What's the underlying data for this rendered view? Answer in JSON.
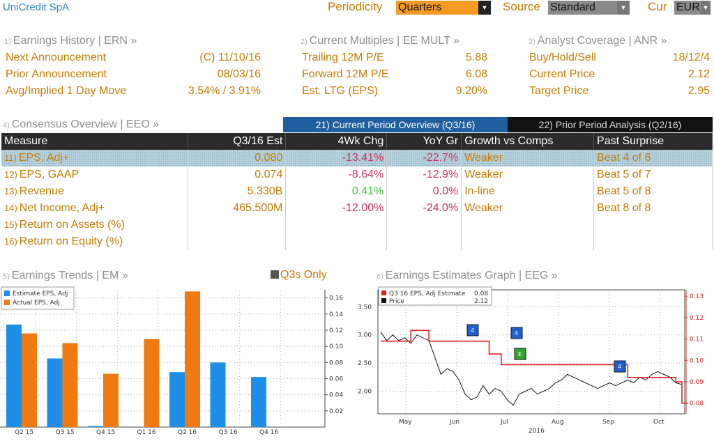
{
  "header": {
    "security": "UniCredit SpA",
    "periodicity_label": "Periodicity",
    "periodicity_value": "Quarters",
    "source_label": "Source",
    "source_value": "Standard",
    "cur_label": "Cur",
    "cur_value": "EUR"
  },
  "earnings_history": {
    "num": "1)",
    "title": "Earnings History | ERN »",
    "rows": [
      {
        "label": "Next Announcement",
        "value": "(C)  11/10/16"
      },
      {
        "label": "Prior Announcement",
        "value": "08/03/16"
      },
      {
        "label": "Avg/Implied 1 Day Move",
        "value": "3.54% / 3.91%"
      }
    ]
  },
  "current_multiples": {
    "num": "2)",
    "title": "Current Multiples | EE MULT »",
    "rows": [
      {
        "label": "Trailing 12M P/E",
        "value": "5.88"
      },
      {
        "label": "Forward 12M P/E",
        "value": "6.08"
      },
      {
        "label": "Est. LTG (EPS)",
        "value": "9.20%"
      }
    ]
  },
  "analyst_coverage": {
    "num": "3)",
    "title": "Analyst Coverage | ANR »",
    "rows": [
      {
        "label": "Buy/Hold/Sell",
        "value": "18/12/4"
      },
      {
        "label": "Current Price",
        "value": "2.12"
      },
      {
        "label": "Target Price",
        "value": "2.95"
      }
    ]
  },
  "consensus": {
    "num": "4)",
    "title": "Consensus Overview | EEO »",
    "tab_current": "21) Current Period Overview (Q3/16)",
    "tab_prior": "22) Prior Period Analysis (Q2/16)",
    "columns": [
      "Measure",
      "Q3/16 Est",
      "4Wk Chg",
      "YoY Gr",
      "Growth vs Comps",
      "Past Surprise"
    ],
    "rows": [
      {
        "num": "11)",
        "measure": "EPS, Adj+",
        "est": "0.080",
        "chg": "-13.41%",
        "yoy": "-22.7%",
        "growth": "Weaker",
        "surprise": "Beat 4 of 6"
      },
      {
        "num": "12)",
        "measure": "EPS, GAAP",
        "est": "0.074",
        "chg": "-8.64%",
        "yoy": "-12.9%",
        "growth": "Weaker",
        "surprise": "Beat 5 of 7"
      },
      {
        "num": "13)",
        "measure": "Revenue",
        "est": "5.330B",
        "chg": "0.41%",
        "yoy": "0.0%",
        "growth": "In-line",
        "surprise": "Beat 5 of 8"
      },
      {
        "num": "14)",
        "measure": "Net Income, Adj+",
        "est": "465.500M",
        "chg": "-12.00%",
        "yoy": "-24.0%",
        "growth": "Weaker",
        "surprise": "Beat 8 of 8"
      },
      {
        "num": "15)",
        "measure": "Return on Assets (%)",
        "est": "",
        "chg": "",
        "yoy": "",
        "growth": "",
        "surprise": ""
      },
      {
        "num": "16)",
        "measure": "Return on Equity (%)",
        "est": "",
        "chg": "",
        "yoy": "",
        "growth": "",
        "surprise": ""
      }
    ]
  },
  "earnings_trends": {
    "num": "5)",
    "title": "Earnings Trends | EM »",
    "toggle": "Q3s Only"
  },
  "estimates_graph": {
    "num": "6)",
    "title": "Earnings Estimates Graph | EEG »"
  },
  "colors": {
    "estimate": "#1e8fe8",
    "actual": "#ef7a10",
    "price": "#111111",
    "est_line": "#e02020"
  },
  "chart_data": [
    {
      "type": "bar",
      "categories": [
        "Q2 15",
        "Q3 15",
        "Q4 15",
        "Q1 16",
        "Q2 16",
        "Q3 16",
        "Q4 16"
      ],
      "series": [
        {
          "name": "Estimate EPS, Adj",
          "values": [
            0.127,
            0.085,
            0.0,
            null,
            0.068,
            0.08,
            0.062
          ]
        },
        {
          "name": "Actual EPS, Adj",
          "values": [
            0.116,
            0.104,
            0.066,
            0.109,
            0.168,
            null,
            null
          ]
        }
      ],
      "ylim": [
        0,
        0.17
      ],
      "yticks": [
        "0.16",
        "0.14",
        "0.12",
        "0.10",
        "0.08",
        "0.06",
        "0.04",
        "0.02"
      ],
      "grid": true,
      "legend": "top-left"
    },
    {
      "type": "line",
      "x_labels": [
        "May",
        "Jun",
        "Jul",
        "Aug",
        "Sep",
        "Oct"
      ],
      "year_label": "2016",
      "left_ticks": [
        "3.50",
        "3.00",
        "2.50",
        "2.00"
      ],
      "right_ticks": [
        "0.13",
        "0.12",
        "0.11",
        "0.10",
        "0.09",
        "0.08"
      ],
      "series": [
        {
          "name": "Q3 16 EPS, Adj Estimate",
          "last": "0.08",
          "axis": "right",
          "values": [
            0.109,
            0.109,
            0.109,
            0.109,
            0.109,
            0.114,
            0.114,
            0.114,
            0.109,
            0.109,
            0.109,
            0.109,
            0.109,
            0.109,
            0.109,
            0.109,
            0.109,
            0.109,
            0.103,
            0.103,
            0.098,
            0.098,
            0.098,
            0.098,
            0.098,
            0.098,
            0.098,
            0.098,
            0.098,
            0.098,
            0.098,
            0.098,
            0.098,
            0.098,
            0.098,
            0.098,
            0.098,
            0.098,
            0.098,
            0.098,
            0.098,
            0.092,
            0.092,
            0.092,
            0.092,
            0.092,
            0.092,
            0.092,
            0.092,
            0.09,
            0.08,
            0.08
          ]
        },
        {
          "name": "Price",
          "last": "2.12",
          "axis": "left",
          "values": [
            3.05,
            2.9,
            3.0,
            2.9,
            2.95,
            2.85,
            3.0,
            2.95,
            2.9,
            2.6,
            2.3,
            2.4,
            2.35,
            2.2,
            1.95,
            1.85,
            1.9,
            2.1,
            1.95,
            2.05,
            2.0,
            1.85,
            1.75,
            1.95,
            2.0,
            2.05,
            1.95,
            2.0,
            2.05,
            2.15,
            2.2,
            2.3,
            2.25,
            2.2,
            2.15,
            2.1,
            2.05,
            2.1,
            2.15,
            2.1,
            2.15,
            2.2,
            2.15,
            2.25,
            2.2,
            2.3,
            2.35,
            2.3,
            2.25,
            2.15,
            2.12
          ]
        }
      ],
      "markers": [
        "4",
        "4",
        "E",
        "4"
      ],
      "legend": "top-left"
    }
  ]
}
